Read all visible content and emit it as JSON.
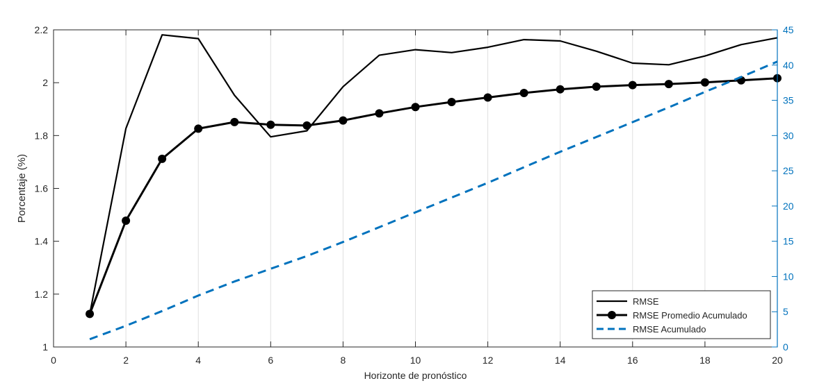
{
  "chart_data": {
    "type": "line",
    "xlabel": "Horizonte de pronóstico",
    "ylabel_left": "Porcentaje (%)",
    "ylabel_right": "",
    "xlim": [
      0,
      20
    ],
    "ylim_left": [
      1,
      2.2
    ],
    "ylim_right": [
      0,
      45
    ],
    "xticks": [
      0,
      2,
      4,
      6,
      8,
      10,
      12,
      14,
      16,
      18,
      20
    ],
    "yticks_left": [
      1,
      1.2,
      1.4,
      1.6,
      1.8,
      2,
      2.2
    ],
    "yticks_right": [
      0,
      5,
      10,
      15,
      20,
      25,
      30,
      35,
      40,
      45
    ],
    "grid": "vertical",
    "legend_position": "bottom-right",
    "series": [
      {
        "name": "RMSE",
        "axis": "left",
        "color": "#000000",
        "style": "solid",
        "x": [
          1,
          2,
          3,
          4,
          5,
          6,
          7,
          8,
          9,
          10,
          11,
          12,
          13,
          14,
          15,
          16,
          17,
          18,
          19,
          20
        ],
        "values": [
          1.125,
          1.827,
          2.181,
          2.167,
          1.952,
          1.795,
          1.818,
          1.985,
          2.104,
          2.125,
          2.114,
          2.134,
          2.163,
          2.158,
          2.119,
          2.074,
          2.068,
          2.101,
          2.144,
          2.17
        ]
      },
      {
        "name": "RMSE Promedio Acumulado",
        "axis": "left",
        "color": "#000000",
        "style": "solid-markers",
        "x": [
          1,
          2,
          3,
          4,
          5,
          6,
          7,
          8,
          9,
          10,
          11,
          12,
          13,
          14,
          15,
          16,
          17,
          18,
          19,
          20
        ],
        "values": [
          1.125,
          1.478,
          1.712,
          1.826,
          1.851,
          1.841,
          1.838,
          1.857,
          1.884,
          1.908,
          1.927,
          1.944,
          1.961,
          1.975,
          1.985,
          1.991,
          1.995,
          2.001,
          2.009,
          2.017
        ]
      },
      {
        "name": "RMSE Acumulado",
        "axis": "right",
        "color": "#0072BD",
        "style": "dashed",
        "x": [
          1,
          2,
          3,
          4,
          5,
          6,
          7,
          8,
          9,
          10,
          11,
          12,
          13,
          14,
          15,
          16,
          17,
          18,
          19,
          20
        ],
        "values": [
          1.1,
          3.0,
          5.1,
          7.3,
          9.3,
          11.1,
          12.9,
          14.9,
          17.0,
          19.1,
          21.2,
          23.3,
          25.5,
          27.7,
          29.8,
          31.9,
          34.0,
          36.2,
          38.3,
          40.5
        ]
      }
    ]
  }
}
